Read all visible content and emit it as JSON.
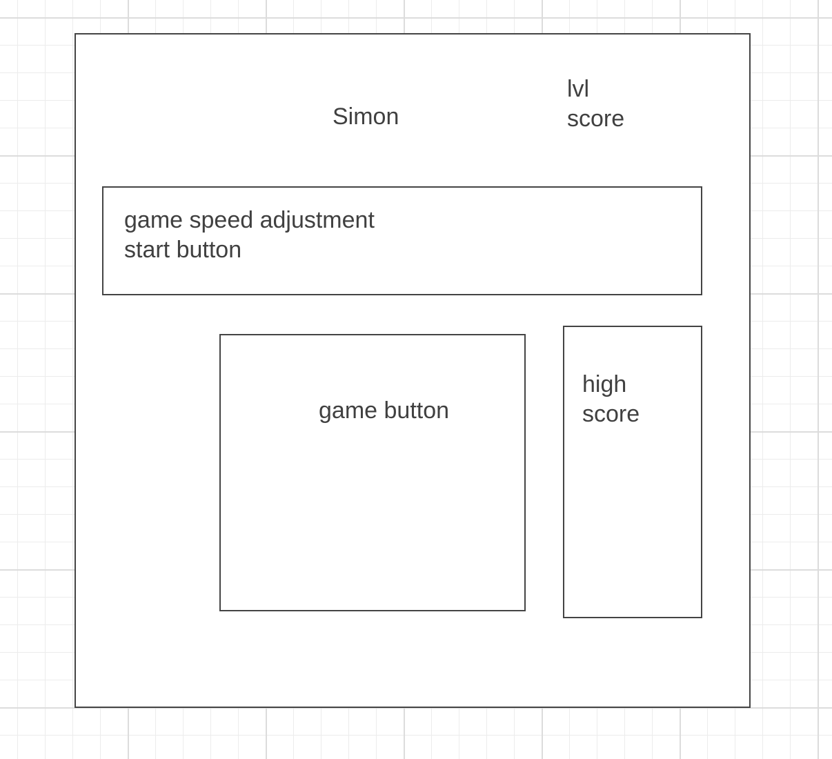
{
  "app": {
    "title": "Simon",
    "level_label": "lvl",
    "score_label": "score"
  },
  "controls": {
    "speed_label": "game speed adjustment",
    "start_label": "start button"
  },
  "game": {
    "button_label": "game button"
  },
  "high_score": {
    "line1": "high",
    "line2": "score"
  }
}
